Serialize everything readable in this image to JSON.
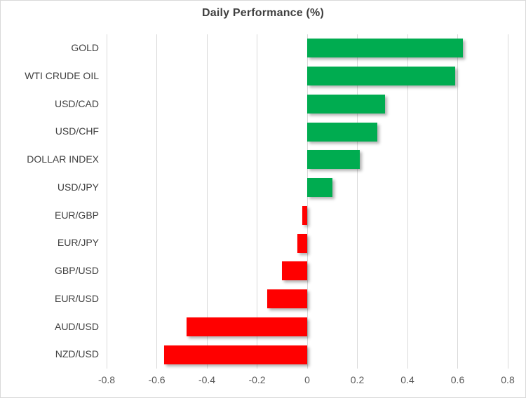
{
  "chart_data": {
    "type": "bar",
    "orientation": "horizontal",
    "title": "Daily Performance (%)",
    "categories": [
      "GOLD",
      "WTI CRUDE OIL",
      "USD/CAD",
      "USD/CHF",
      "DOLLAR INDEX",
      "USD/JPY",
      "EUR/GBP",
      "EUR/JPY",
      "GBP/USD",
      "EUR/USD",
      "AUD/USD",
      "NZD/USD"
    ],
    "values": [
      0.62,
      0.59,
      0.31,
      0.28,
      0.21,
      0.1,
      -0.02,
      -0.04,
      -0.1,
      -0.16,
      -0.48,
      -0.57
    ],
    "xlim": [
      -0.8,
      0.8
    ],
    "xtick_values": [
      -0.8,
      -0.6,
      -0.4,
      -0.2,
      0,
      0.2,
      0.4,
      0.6,
      0.8
    ],
    "xtick_labels": [
      "-0.8",
      "-0.6",
      "-0.4",
      "-0.2",
      "0",
      "0.2",
      "0.4",
      "0.6",
      "0.8"
    ],
    "grid": true,
    "legend": "none",
    "xlabel": "",
    "ylabel": ""
  },
  "colors": {
    "positive_bar": "#00AC50",
    "negative_bar": "#FF0000",
    "gridline": "#D9D9D9",
    "border": "#D9D9D9",
    "title_text": "#3F3F3F",
    "category_text": "#404040",
    "tick_text": "#595959",
    "background": "#FFFFFF"
  }
}
